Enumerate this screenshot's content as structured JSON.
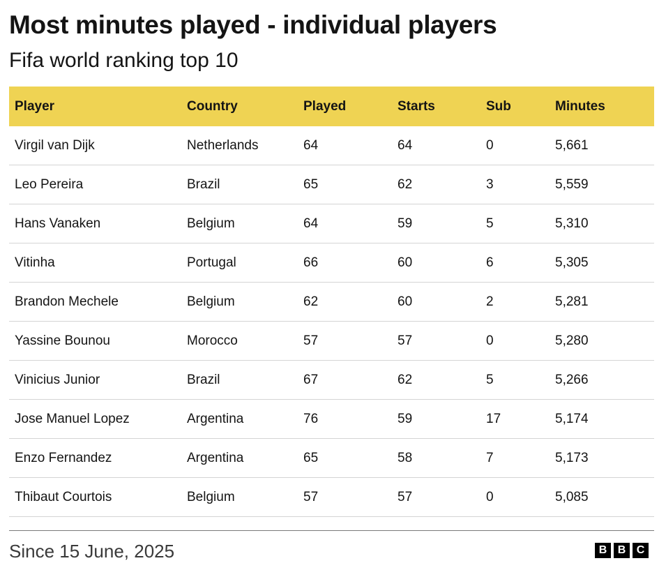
{
  "header": {
    "title": "Most minutes played - individual players",
    "subtitle": "Fifa world ranking top 10"
  },
  "table": {
    "columns": [
      "Player",
      "Country",
      "Played",
      "Starts",
      "Sub",
      "Minutes"
    ],
    "rows": [
      [
        "Virgil van Dijk",
        "Netherlands",
        "64",
        "64",
        "0",
        "5,661"
      ],
      [
        "Leo Pereira",
        "Brazil",
        "65",
        "62",
        "3",
        "5,559"
      ],
      [
        "Hans Vanaken",
        "Belgium",
        "64",
        "59",
        "5",
        "5,310"
      ],
      [
        "Vitinha",
        "Portugal",
        "66",
        "60",
        "6",
        "5,305"
      ],
      [
        "Brandon Mechele",
        "Belgium",
        "62",
        "60",
        "2",
        "5,281"
      ],
      [
        "Yassine Bounou",
        "Morocco",
        "57",
        "57",
        "0",
        "5,280"
      ],
      [
        "Vinicius Junior",
        "Brazil",
        "67",
        "62",
        "5",
        "5,266"
      ],
      [
        "Jose Manuel Lopez",
        "Argentina",
        "76",
        "59",
        "17",
        "5,174"
      ],
      [
        "Enzo Fernandez",
        "Argentina",
        "65",
        "58",
        "7",
        "5,173"
      ],
      [
        "Thibaut Courtois",
        "Belgium",
        "57",
        "57",
        "0",
        "5,085"
      ]
    ]
  },
  "footer": {
    "source": "Since 15 June, 2025",
    "logo_letters": [
      "B",
      "B",
      "C"
    ]
  },
  "colors": {
    "header_background": "#efd353",
    "text": "#141414",
    "row_divider": "#d4d4d4"
  }
}
